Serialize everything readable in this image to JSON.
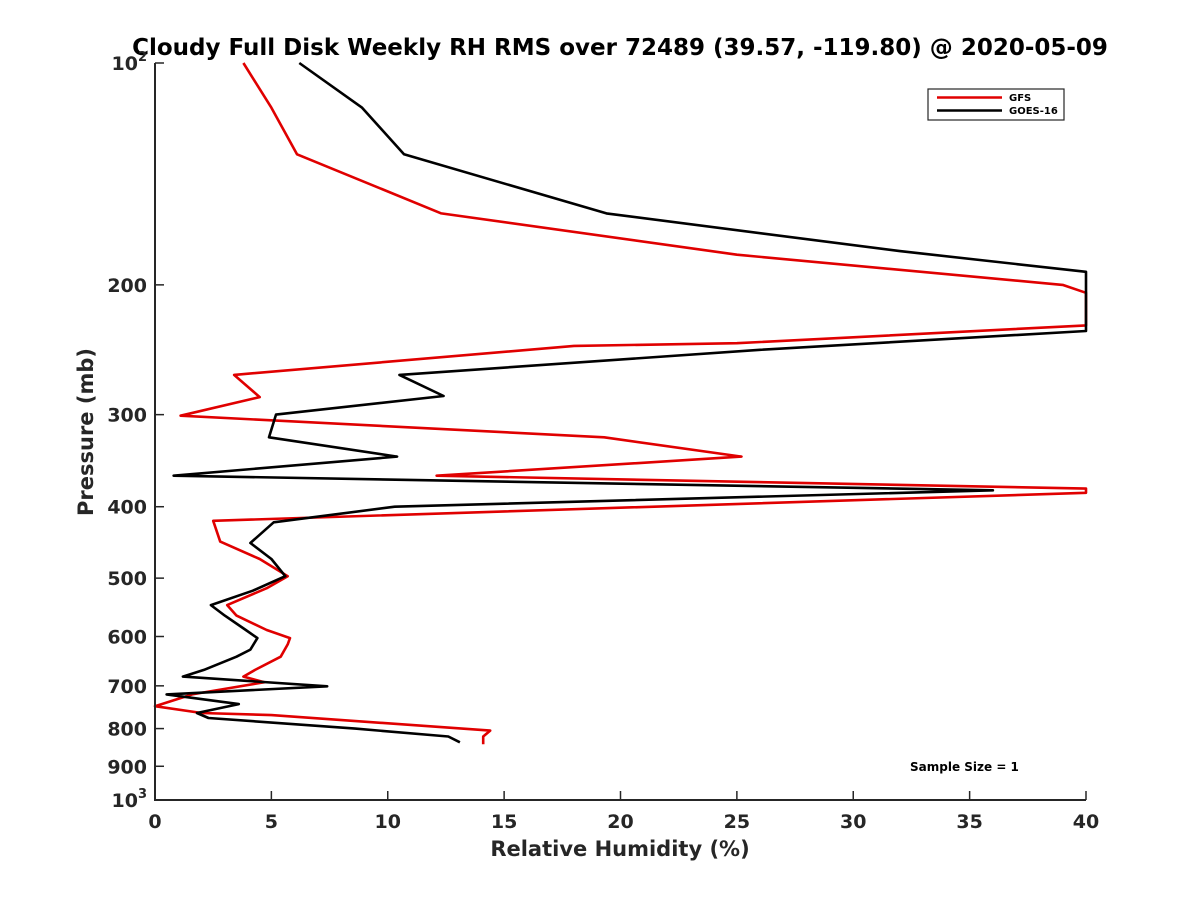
{
  "chart_data": {
    "type": "line",
    "title": "Cloudy Full Disk Weekly RH RMS over 72489 (39.57, -119.80) @ 2020-05-09",
    "xlabel": "Relative Humidity (%)",
    "ylabel": "Pressure (mb)",
    "xlim": [
      0,
      40
    ],
    "ylim": [
      100,
      1000
    ],
    "y_scale": "log",
    "y_reversed": true,
    "grid": false,
    "legend_position": "top-right",
    "x_ticks": [
      "0",
      "5",
      "10",
      "15",
      "20",
      "25",
      "30",
      "35",
      "40"
    ],
    "y_ticks": [
      {
        "value": 100,
        "base": "10",
        "exp": "2"
      },
      {
        "value": 200,
        "base": "200",
        "exp": ""
      },
      {
        "value": 300,
        "base": "300",
        "exp": ""
      },
      {
        "value": 400,
        "base": "400",
        "exp": ""
      },
      {
        "value": 500,
        "base": "500",
        "exp": ""
      },
      {
        "value": 600,
        "base": "600",
        "exp": ""
      },
      {
        "value": 700,
        "base": "700",
        "exp": ""
      },
      {
        "value": 800,
        "base": "800",
        "exp": ""
      },
      {
        "value": 900,
        "base": "900",
        "exp": ""
      },
      {
        "value": 1000,
        "base": "10",
        "exp": "3"
      }
    ],
    "series": [
      {
        "name": "GFS",
        "color": "#e00000",
        "points": [
          [
            3.8,
            100
          ],
          [
            5.0,
            115
          ],
          [
            6.1,
            133
          ],
          [
            12.3,
            160
          ],
          [
            25.0,
            182
          ],
          [
            39.0,
            200
          ],
          [
            40.0,
            205
          ],
          [
            40.0,
            227
          ],
          [
            25.0,
            240
          ],
          [
            18.0,
            242
          ],
          [
            3.4,
            265
          ],
          [
            4.5,
            284
          ],
          [
            1.1,
            301
          ],
          [
            19.3,
            322
          ],
          [
            25.2,
            342
          ],
          [
            12.1,
            363
          ],
          [
            40.0,
            378
          ],
          [
            40.0,
            383
          ],
          [
            2.5,
            418
          ],
          [
            2.8,
            446
          ],
          [
            4.5,
            471
          ],
          [
            5.7,
            497
          ],
          [
            4.8,
            516
          ],
          [
            3.1,
            544
          ],
          [
            3.5,
            562
          ],
          [
            4.8,
            588
          ],
          [
            5.8,
            603
          ],
          [
            5.7,
            615
          ],
          [
            5.4,
            639
          ],
          [
            4.3,
            666
          ],
          [
            3.8,
            680
          ],
          [
            4.7,
            692
          ],
          [
            1.6,
            719
          ],
          [
            0.0,
            746
          ],
          [
            2.0,
            762
          ],
          [
            5.0,
            767
          ],
          [
            14.4,
            805
          ],
          [
            14.1,
            820
          ],
          [
            14.1,
            840
          ]
        ]
      },
      {
        "name": "GOES-16",
        "color": "#000000",
        "points": [
          [
            6.2,
            100
          ],
          [
            8.9,
            115
          ],
          [
            10.7,
            133
          ],
          [
            19.4,
            160
          ],
          [
            32.0,
            180
          ],
          [
            40.0,
            192
          ],
          [
            40.0,
            231
          ],
          [
            26.0,
            245
          ],
          [
            10.5,
            265
          ],
          [
            12.4,
            283
          ],
          [
            5.2,
            300
          ],
          [
            4.9,
            322
          ],
          [
            10.4,
            342
          ],
          [
            0.8,
            363
          ],
          [
            36.0,
            380
          ],
          [
            10.3,
            400
          ],
          [
            5.1,
            420
          ],
          [
            4.1,
            448
          ],
          [
            5.0,
            471
          ],
          [
            5.6,
            497
          ],
          [
            4.2,
            520
          ],
          [
            2.4,
            544
          ],
          [
            3.0,
            562
          ],
          [
            3.9,
            588
          ],
          [
            4.4,
            603
          ],
          [
            4.1,
            625
          ],
          [
            3.5,
            639
          ],
          [
            2.1,
            666
          ],
          [
            1.2,
            680
          ],
          [
            7.4,
            701
          ],
          [
            0.5,
            719
          ],
          [
            3.6,
            741
          ],
          [
            1.8,
            762
          ],
          [
            2.3,
            774
          ],
          [
            8.6,
            800
          ],
          [
            12.6,
            820
          ],
          [
            13.1,
            835
          ]
        ]
      }
    ],
    "legend": [
      {
        "label": "GFS",
        "color": "#e00000"
      },
      {
        "label": "GOES-16",
        "color": "#000000"
      }
    ],
    "annotation": "Sample Size = 1"
  }
}
